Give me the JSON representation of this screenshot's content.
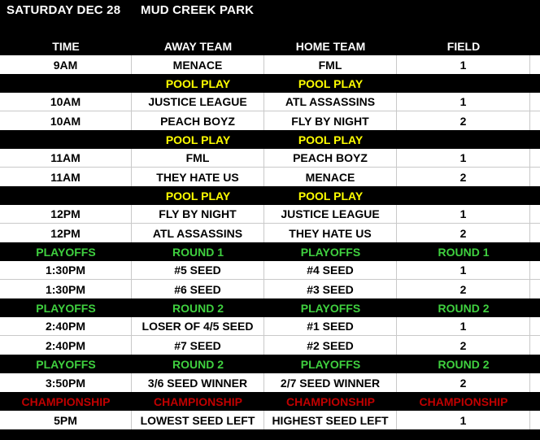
{
  "title": {
    "date": "SATURDAY DEC 28",
    "park": "MUD CREEK PARK"
  },
  "header": {
    "columns": [
      "TIME",
      "AWAY TEAM",
      "HOME TEAM",
      "FIELD"
    ]
  },
  "colors": {
    "pool_play_text": "#FFFF00",
    "playoffs_text": "#3FD03F",
    "championship_text": "#C00000",
    "banner_background": "#000000",
    "game_row_background": "#FFFFFF",
    "gridline": "#C9C9C9"
  },
  "rows": [
    {
      "type": "game",
      "cells": [
        "9AM",
        "MENACE",
        "FML",
        "1"
      ]
    },
    {
      "type": "pool",
      "cells": [
        "",
        "POOL PLAY",
        "POOL PLAY",
        ""
      ]
    },
    {
      "type": "game",
      "cells": [
        "10AM",
        "JUSTICE LEAGUE",
        "ATL ASSASSINS",
        "1"
      ]
    },
    {
      "type": "game",
      "cells": [
        "10AM",
        "PEACH BOYZ",
        "FLY BY NIGHT",
        "2"
      ]
    },
    {
      "type": "pool",
      "cells": [
        "",
        "POOL PLAY",
        "POOL PLAY",
        ""
      ]
    },
    {
      "type": "game",
      "cells": [
        "11AM",
        "FML",
        "PEACH BOYZ",
        "1"
      ]
    },
    {
      "type": "game",
      "cells": [
        "11AM",
        "THEY HATE US",
        "MENACE",
        "2"
      ]
    },
    {
      "type": "pool",
      "cells": [
        "",
        "POOL PLAY",
        "POOL PLAY",
        ""
      ]
    },
    {
      "type": "game",
      "cells": [
        "12PM",
        "FLY BY NIGHT",
        "JUSTICE LEAGUE",
        "1"
      ]
    },
    {
      "type": "game",
      "cells": [
        "12PM",
        "ATL ASSASSINS",
        "THEY HATE US",
        "2"
      ]
    },
    {
      "type": "playoffs",
      "cells": [
        "PLAYOFFS",
        "ROUND 1",
        "PLAYOFFS",
        "ROUND 1"
      ]
    },
    {
      "type": "game",
      "cells": [
        "1:30PM",
        "#5 SEED",
        "#4 SEED",
        "1"
      ]
    },
    {
      "type": "game",
      "cells": [
        "1:30PM",
        "#6 SEED",
        "#3 SEED",
        "2"
      ]
    },
    {
      "type": "playoffs",
      "cells": [
        "PLAYOFFS",
        "ROUND 2",
        "PLAYOFFS",
        "ROUND 2"
      ]
    },
    {
      "type": "game",
      "cells": [
        "2:40PM",
        "LOSER OF 4/5 SEED",
        "#1 SEED",
        "1"
      ]
    },
    {
      "type": "game",
      "cells": [
        "2:40PM",
        "#7 SEED",
        "#2 SEED",
        "2"
      ]
    },
    {
      "type": "playoffs",
      "cells": [
        "PLAYOFFS",
        "ROUND 2",
        "PLAYOFFS",
        "ROUND 2"
      ]
    },
    {
      "type": "game",
      "cells": [
        "3:50PM",
        "3/6 SEED WINNER",
        "2/7 SEED WINNER",
        "2"
      ]
    },
    {
      "type": "championship",
      "cells": [
        "CHAMPIONSHIP",
        "CHAMPIONSHIP",
        "CHAMPIONSHIP",
        "CHAMPIONSHIP"
      ]
    },
    {
      "type": "game",
      "cells": [
        "5PM",
        "LOWEST SEED LEFT",
        "HIGHEST SEED LEFT",
        "1"
      ]
    }
  ]
}
